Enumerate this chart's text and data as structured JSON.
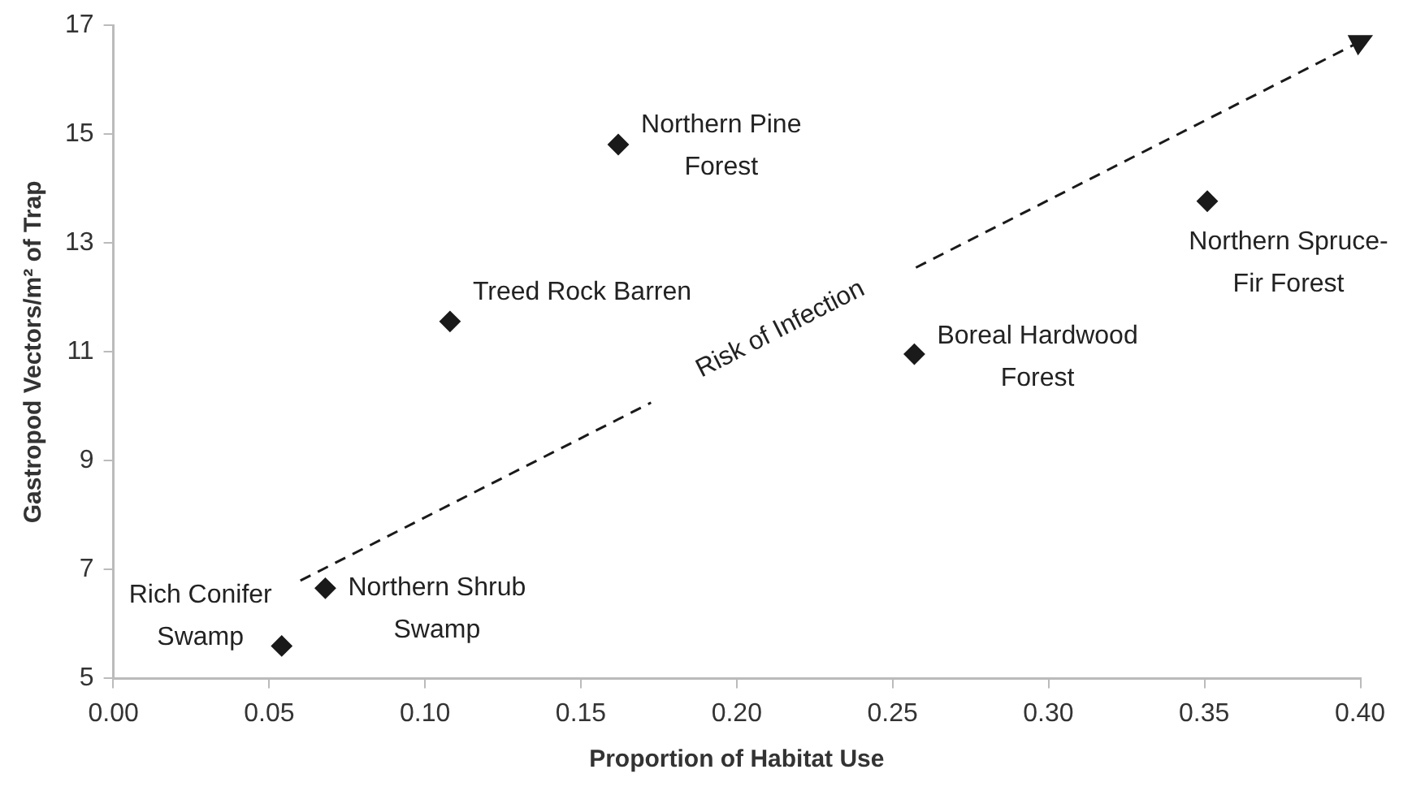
{
  "chart_data": {
    "type": "scatter",
    "xlabel": "Proportion of Habitat Use",
    "ylabel": "Gastropod Vectors/m² of Trap",
    "xlim": [
      0,
      0.4
    ],
    "xticks": [
      {
        "value": 0,
        "label": "0.00"
      },
      {
        "value": 0.05,
        "label": "0.05"
      },
      {
        "value": 0.1,
        "label": "0.10"
      },
      {
        "value": 0.15,
        "label": "0.15"
      },
      {
        "value": 0.2,
        "label": "0.20"
      },
      {
        "value": 0.25,
        "label": "0.25"
      },
      {
        "value": 0.3,
        "label": "0.30"
      },
      {
        "value": 0.35,
        "label": "0.35"
      },
      {
        "value": 0.4,
        "label": "0.40"
      }
    ],
    "ylim": [
      5,
      17
    ],
    "yticks": [
      5,
      7,
      9,
      11,
      13,
      15,
      17
    ],
    "grid": false,
    "legend": false,
    "marker": "diamond",
    "series": [
      {
        "type": "scatter",
        "color": "#1a1a1a",
        "x": [
          0.054,
          0.068,
          0.108,
          0.162,
          0.257,
          0.351
        ],
        "values": [
          5.6,
          6.66,
          11.56,
          14.81,
          10.96,
          13.77
        ]
      },
      {
        "type": "line",
        "color": "#1a1a1a",
        "marker": "none",
        "line_style": "dashed",
        "x": [
          0.06,
          0.1725,
          0.215,
          0.2575,
          0.4
        ],
        "values": [
          6.8,
          10.07,
          null,
          12.55,
          16.7
        ]
      }
    ],
    "annotations": [
      {
        "text": "Rich Conifer\nSwamp",
        "x": 0.054,
        "y": 5.6
      },
      {
        "text": "Northern Shrub\nSwamp",
        "x": 0.068,
        "y": 6.66
      },
      {
        "text": "Treed Rock Barren",
        "x": 0.108,
        "y": 11.56
      },
      {
        "text": "Northern Pine\nForest",
        "x": 0.162,
        "y": 14.81
      },
      {
        "text": "Boreal Hardwood\nForest",
        "x": 0.257,
        "y": 10.96
      },
      {
        "text": "Northern Spruce-\nFir Forest",
        "x": 0.351,
        "y": 13.77
      },
      "Risk of Infection"
    ]
  }
}
